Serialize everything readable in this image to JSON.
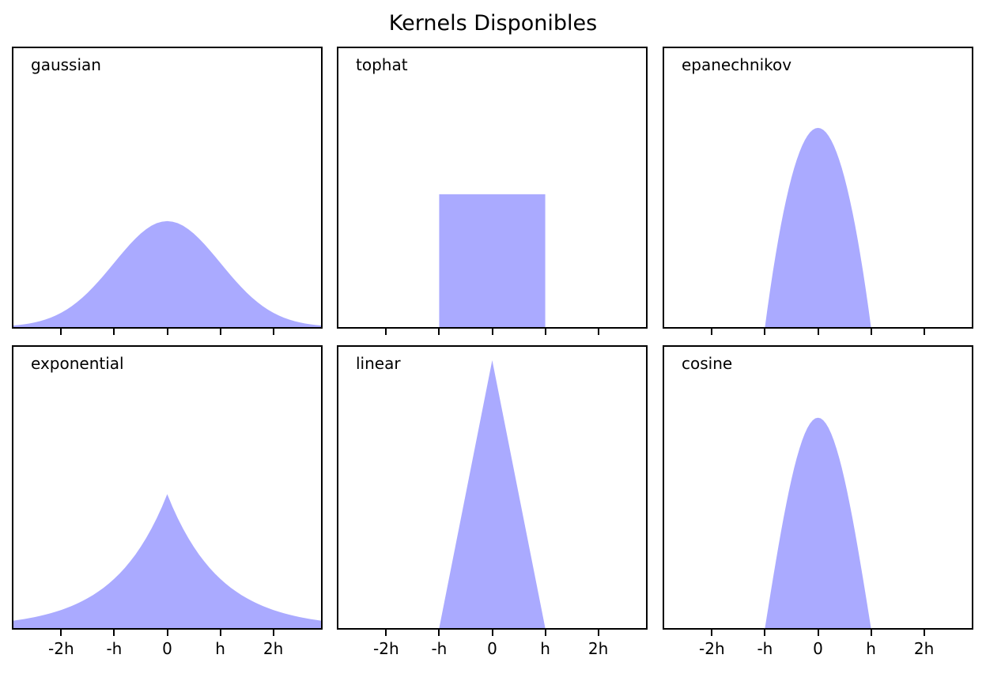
{
  "title": "Kernels Disponibles",
  "colors": {
    "fill": "#AAAAFF",
    "spine": "#000000",
    "text": "#000000",
    "background": "#FFFFFF"
  },
  "axes": {
    "xlim": [
      -2.9,
      2.9
    ],
    "ylim": [
      0,
      1.05
    ],
    "grid": false,
    "legend": "none",
    "label_position": "top-left-inside",
    "xticks": [
      {
        "value": -2,
        "label": "-2h"
      },
      {
        "value": -1,
        "label": "-h"
      },
      {
        "value": 0,
        "label": "0"
      },
      {
        "value": 1,
        "label": "h"
      },
      {
        "value": 2,
        "label": "2h"
      }
    ],
    "yticks": []
  },
  "layout": {
    "rows": 2,
    "cols": 3,
    "tick_labels_on": "bottom-row-only"
  },
  "chart_data": [
    {
      "type": "area",
      "name": "gaussian",
      "label": "gaussian",
      "points": [
        [
          -2.9,
          0.00595
        ],
        [
          -2.8,
          0.00792
        ],
        [
          -2.7,
          0.01042
        ],
        [
          -2.6,
          0.01358
        ],
        [
          -2.5,
          0.01753
        ],
        [
          -2.4,
          0.02239
        ],
        [
          -2.3,
          0.02833
        ],
        [
          -2.2,
          0.03547
        ],
        [
          -2.1,
          0.04398
        ],
        [
          -2.0,
          0.05399
        ],
        [
          -1.9,
          0.06562
        ],
        [
          -1.8,
          0.07895
        ],
        [
          -1.7,
          0.09405
        ],
        [
          -1.6,
          0.11092
        ],
        [
          -1.5,
          0.12952
        ],
        [
          -1.4,
          0.14973
        ],
        [
          -1.3,
          0.17137
        ],
        [
          -1.2,
          0.19419
        ],
        [
          -1.1,
          0.21785
        ],
        [
          -1.0,
          0.24197
        ],
        [
          -0.9,
          0.26609
        ],
        [
          -0.8,
          0.28969
        ],
        [
          -0.7,
          0.31225
        ],
        [
          -0.6,
          0.33322
        ],
        [
          -0.5,
          0.35207
        ],
        [
          -0.4,
          0.36827
        ],
        [
          -0.3,
          0.38139
        ],
        [
          -0.2,
          0.39104
        ],
        [
          -0.1,
          0.39695
        ],
        [
          0,
          0.39894
        ],
        [
          0.1,
          0.39695
        ],
        [
          0.2,
          0.39104
        ],
        [
          0.3,
          0.38139
        ],
        [
          0.4,
          0.36827
        ],
        [
          0.5,
          0.35207
        ],
        [
          0.6,
          0.33322
        ],
        [
          0.7,
          0.31225
        ],
        [
          0.8,
          0.28969
        ],
        [
          0.9,
          0.26609
        ],
        [
          1.0,
          0.24197
        ],
        [
          1.1,
          0.21785
        ],
        [
          1.2,
          0.19419
        ],
        [
          1.3,
          0.17137
        ],
        [
          1.4,
          0.14973
        ],
        [
          1.5,
          0.12952
        ],
        [
          1.6,
          0.11092
        ],
        [
          1.7,
          0.09405
        ],
        [
          1.8,
          0.07895
        ],
        [
          1.9,
          0.06562
        ],
        [
          2.0,
          0.05399
        ],
        [
          2.1,
          0.04398
        ],
        [
          2.2,
          0.03547
        ],
        [
          2.3,
          0.02833
        ],
        [
          2.4,
          0.02239
        ],
        [
          2.5,
          0.01753
        ],
        [
          2.6,
          0.01358
        ],
        [
          2.7,
          0.01042
        ],
        [
          2.8,
          0.00792
        ],
        [
          2.9,
          0.00595
        ]
      ]
    },
    {
      "type": "area",
      "name": "tophat",
      "label": "tophat",
      "points": [
        [
          -2.9,
          0
        ],
        [
          -1,
          0
        ],
        [
          -1,
          0.5
        ],
        [
          1,
          0.5
        ],
        [
          1,
          0
        ],
        [
          2.9,
          0
        ]
      ]
    },
    {
      "type": "area",
      "name": "epanechnikov",
      "label": "epanechnikov",
      "points": [
        [
          -2.9,
          0
        ],
        [
          -1.0,
          0
        ],
        [
          -0.95,
          0.07313
        ],
        [
          -0.9,
          0.1425
        ],
        [
          -0.85,
          0.20813
        ],
        [
          -0.8,
          0.27
        ],
        [
          -0.75,
          0.32813
        ],
        [
          -0.7,
          0.3825
        ],
        [
          -0.65,
          0.43313
        ],
        [
          -0.6,
          0.48
        ],
        [
          -0.55,
          0.52313
        ],
        [
          -0.5,
          0.5625
        ],
        [
          -0.45,
          0.59813
        ],
        [
          -0.4,
          0.63
        ],
        [
          -0.35,
          0.65813
        ],
        [
          -0.3,
          0.6825
        ],
        [
          -0.25,
          0.70313
        ],
        [
          -0.2,
          0.72
        ],
        [
          -0.15,
          0.73313
        ],
        [
          -0.1,
          0.7425
        ],
        [
          -0.05,
          0.74813
        ],
        [
          0,
          0.75
        ],
        [
          0.05,
          0.74813
        ],
        [
          0.1,
          0.7425
        ],
        [
          0.15,
          0.73313
        ],
        [
          0.2,
          0.72
        ],
        [
          0.25,
          0.70313
        ],
        [
          0.3,
          0.6825
        ],
        [
          0.35,
          0.65813
        ],
        [
          0.4,
          0.63
        ],
        [
          0.45,
          0.59813
        ],
        [
          0.5,
          0.5625
        ],
        [
          0.55,
          0.52313
        ],
        [
          0.6,
          0.48
        ],
        [
          0.65,
          0.43313
        ],
        [
          0.7,
          0.3825
        ],
        [
          0.75,
          0.32813
        ],
        [
          0.8,
          0.27
        ],
        [
          0.85,
          0.20813
        ],
        [
          0.9,
          0.1425
        ],
        [
          0.95,
          0.07313
        ],
        [
          1.0,
          0
        ],
        [
          2.9,
          0
        ]
      ]
    },
    {
      "type": "area",
      "name": "exponential",
      "label": "exponential",
      "points": [
        [
          -2.9,
          0.02751
        ],
        [
          -2.8,
          0.03041
        ],
        [
          -2.7,
          0.0336
        ],
        [
          -2.6,
          0.03714
        ],
        [
          -2.5,
          0.04104
        ],
        [
          -2.4,
          0.04536
        ],
        [
          -2.3,
          0.05013
        ],
        [
          -2.2,
          0.0554
        ],
        [
          -2.1,
          0.06123
        ],
        [
          -2.0,
          0.06767
        ],
        [
          -1.9,
          0.07479
        ],
        [
          -1.8,
          0.08265
        ],
        [
          -1.7,
          0.09134
        ],
        [
          -1.6,
          0.10095
        ],
        [
          -1.5,
          0.11157
        ],
        [
          -1.4,
          0.1233
        ],
        [
          -1.3,
          0.13627
        ],
        [
          -1.2,
          0.1506
        ],
        [
          -1.1,
          0.16643
        ],
        [
          -1.0,
          0.18394
        ],
        [
          -0.9,
          0.20328
        ],
        [
          -0.8,
          0.22466
        ],
        [
          -0.7,
          0.24829
        ],
        [
          -0.6,
          0.27441
        ],
        [
          -0.5,
          0.30327
        ],
        [
          -0.4,
          0.33516
        ],
        [
          -0.3,
          0.37041
        ],
        [
          -0.2,
          0.40937
        ],
        [
          -0.1,
          0.45242
        ],
        [
          0,
          0.5
        ],
        [
          0.1,
          0.45242
        ],
        [
          0.2,
          0.40937
        ],
        [
          0.3,
          0.37041
        ],
        [
          0.4,
          0.33516
        ],
        [
          0.5,
          0.30327
        ],
        [
          0.6,
          0.27441
        ],
        [
          0.7,
          0.24829
        ],
        [
          0.8,
          0.22466
        ],
        [
          0.9,
          0.20328
        ],
        [
          1.0,
          0.18394
        ],
        [
          1.1,
          0.16643
        ],
        [
          1.2,
          0.1506
        ],
        [
          1.3,
          0.13627
        ],
        [
          1.4,
          0.1233
        ],
        [
          1.5,
          0.11157
        ],
        [
          1.6,
          0.10095
        ],
        [
          1.7,
          0.09134
        ],
        [
          1.8,
          0.08265
        ],
        [
          1.9,
          0.07479
        ],
        [
          2.0,
          0.06767
        ],
        [
          2.1,
          0.06123
        ],
        [
          2.2,
          0.0554
        ],
        [
          2.3,
          0.05013
        ],
        [
          2.4,
          0.04536
        ],
        [
          2.5,
          0.04104
        ],
        [
          2.6,
          0.03714
        ],
        [
          2.7,
          0.0336
        ],
        [
          2.8,
          0.03041
        ],
        [
          2.9,
          0.02751
        ]
      ]
    },
    {
      "type": "area",
      "name": "linear",
      "label": "linear",
      "points": [
        [
          -2.9,
          0
        ],
        [
          -1,
          0
        ],
        [
          0,
          1
        ],
        [
          1,
          0
        ],
        [
          2.9,
          0
        ]
      ]
    },
    {
      "type": "area",
      "name": "cosine",
      "label": "cosine",
      "points": [
        [
          -2.9,
          0
        ],
        [
          -1.0,
          0
        ],
        [
          -0.95,
          0.06162
        ],
        [
          -0.9,
          0.12286
        ],
        [
          -0.85,
          0.18335
        ],
        [
          -0.8,
          0.2427
        ],
        [
          -0.75,
          0.30056
        ],
        [
          -0.7,
          0.35656
        ],
        [
          -0.65,
          0.41037
        ],
        [
          -0.6,
          0.46164
        ],
        [
          -0.55,
          0.51007
        ],
        [
          -0.5,
          0.55536
        ],
        [
          -0.45,
          0.59722
        ],
        [
          -0.4,
          0.6354
        ],
        [
          -0.35,
          0.66966
        ],
        [
          -0.3,
          0.69979
        ],
        [
          -0.25,
          0.72561
        ],
        [
          -0.2,
          0.74696
        ],
        [
          -0.15,
          0.7637
        ],
        [
          -0.1,
          0.77573
        ],
        [
          -0.05,
          0.78298
        ],
        [
          0,
          0.7854
        ],
        [
          0.05,
          0.78298
        ],
        [
          0.1,
          0.77573
        ],
        [
          0.15,
          0.7637
        ],
        [
          0.2,
          0.74696
        ],
        [
          0.25,
          0.72561
        ],
        [
          0.3,
          0.69979
        ],
        [
          0.35,
          0.66966
        ],
        [
          0.4,
          0.6354
        ],
        [
          0.45,
          0.59722
        ],
        [
          0.5,
          0.55536
        ],
        [
          0.55,
          0.51007
        ],
        [
          0.6,
          0.46164
        ],
        [
          0.65,
          0.41037
        ],
        [
          0.7,
          0.35656
        ],
        [
          0.75,
          0.30056
        ],
        [
          0.8,
          0.2427
        ],
        [
          0.85,
          0.18335
        ],
        [
          0.9,
          0.12286
        ],
        [
          0.95,
          0.06162
        ],
        [
          1.0,
          0
        ],
        [
          2.9,
          0
        ]
      ]
    }
  ]
}
